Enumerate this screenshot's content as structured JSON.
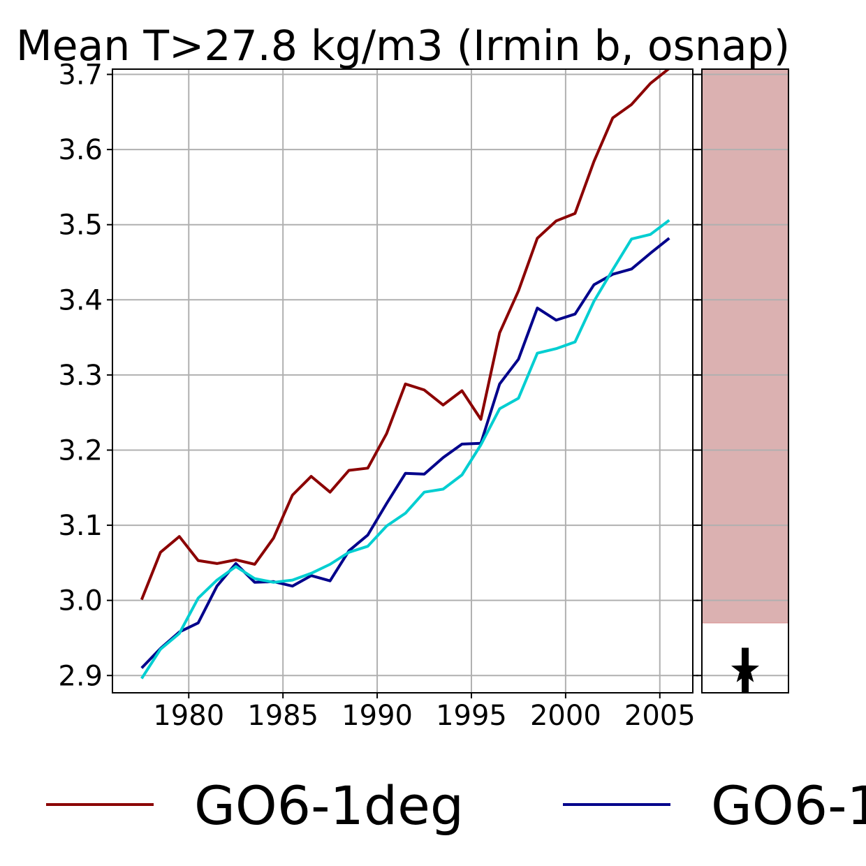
{
  "chart_data": {
    "type": "line",
    "title": "Mean T>27.8 kg/m3 (Irmin b, osnap)",
    "xlabel": "",
    "ylabel": "",
    "xlim": [
      1975.95,
      2006.75
    ],
    "ylim": [
      2.877,
      3.707
    ],
    "grid": true,
    "legend_placement": "bottom",
    "xticks": [
      1980,
      1985,
      1990,
      1995,
      2000,
      2005
    ],
    "xtick_labels": [
      "1980",
      "1985",
      "1990",
      "1995",
      "2000",
      "2005"
    ],
    "yticks": [
      2.9,
      3.0,
      3.1,
      3.2,
      3.3,
      3.4,
      3.5,
      3.6,
      3.7
    ],
    "ytick_labels": [
      "2.9",
      "3.0",
      "3.1",
      "3.2",
      "3.3",
      "3.4",
      "3.5",
      "3.6",
      "3.7"
    ],
    "x": [
      1977.5,
      1978.5,
      1979.5,
      1980.5,
      1981.5,
      1982.5,
      1983.5,
      1984.5,
      1985.5,
      1986.5,
      1987.5,
      1988.5,
      1989.5,
      1990.5,
      1991.5,
      1992.5,
      1993.5,
      1994.5,
      1995.5,
      1996.5,
      1997.5,
      1998.5,
      1999.5,
      2000.5,
      2001.5,
      2002.5,
      2003.5,
      2004.5,
      2005.5
    ],
    "series": [
      {
        "name": "GO6-1deg",
        "color": "#8b0000",
        "values": [
          3.001,
          3.064,
          3.085,
          3.053,
          3.049,
          3.054,
          3.048,
          3.083,
          3.14,
          3.165,
          3.144,
          3.173,
          3.176,
          3.222,
          3.288,
          3.28,
          3.26,
          3.279,
          3.241,
          3.356,
          3.412,
          3.482,
          3.505,
          3.515,
          3.584,
          3.642,
          3.66,
          3.688,
          3.708
        ]
      },
      {
        "name": "",
        "color": "#00008b",
        "values": [
          2.91,
          2.936,
          2.958,
          2.97,
          3.019,
          3.049,
          3.024,
          3.025,
          3.019,
          3.033,
          3.026,
          3.066,
          3.087,
          3.129,
          3.169,
          3.168,
          3.19,
          3.208,
          3.209,
          3.288,
          3.321,
          3.389,
          3.373,
          3.381,
          3.42,
          3.434,
          3.441,
          3.462,
          3.482
        ]
      },
      {
        "name": "",
        "color": "#00ced1",
        "values": [
          2.896,
          2.935,
          2.956,
          3.003,
          3.027,
          3.045,
          3.029,
          3.024,
          3.027,
          3.036,
          3.048,
          3.064,
          3.072,
          3.099,
          3.116,
          3.144,
          3.148,
          3.167,
          3.207,
          3.255,
          3.269,
          3.329,
          3.335,
          3.344,
          3.398,
          3.44,
          3.481,
          3.487,
          3.506
        ]
      }
    ],
    "side_panel": {
      "shaded_range": [
        2.97,
        3.707
      ],
      "shade_color": "#dbb1b1",
      "marker_value": 2.907,
      "whisker": [
        2.877,
        2.937
      ],
      "marker_color": "#000000"
    },
    "legend": {
      "entries": [
        {
          "label": "GO6-1deg",
          "color": "#8b0000"
        },
        {
          "label": "GO6-1",
          "color": "#00008b"
        }
      ]
    }
  }
}
